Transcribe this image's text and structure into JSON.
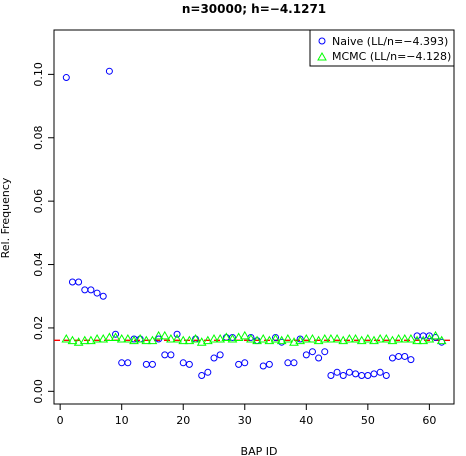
{
  "chart_data": {
    "type": "scatter",
    "title": "n=30000; h=−4.1271",
    "xlabel": "BAP ID",
    "ylabel": "Rel. Frequency",
    "xlim": [
      -1,
      64
    ],
    "ylim": [
      -0.004,
      0.114
    ],
    "x_ticks": [
      0,
      10,
      20,
      30,
      40,
      50,
      60
    ],
    "y_ticks": [
      0.0,
      0.02,
      0.04,
      0.06,
      0.08,
      0.1
    ],
    "y_tick_labels": [
      "0.00",
      "0.02",
      "0.04",
      "0.06",
      "0.08",
      "0.10"
    ],
    "legend_position": "top-right",
    "reference_line": {
      "y": 0.0161,
      "color": "#ff0000",
      "style": "dashed"
    },
    "x": [
      1,
      2,
      3,
      4,
      5,
      6,
      7,
      8,
      9,
      10,
      11,
      12,
      13,
      14,
      15,
      16,
      17,
      18,
      19,
      20,
      21,
      22,
      23,
      24,
      25,
      26,
      27,
      28,
      29,
      30,
      31,
      32,
      33,
      34,
      35,
      36,
      37,
      38,
      39,
      40,
      41,
      42,
      43,
      44,
      45,
      46,
      47,
      48,
      49,
      50,
      51,
      52,
      53,
      54,
      55,
      56,
      57,
      58,
      59,
      60,
      61,
      62
    ],
    "series": [
      {
        "name": "Naive (LL/n=−4.393)",
        "marker": "circle",
        "color": "#0000ff",
        "values": [
          0.099,
          0.0345,
          0.0345,
          0.032,
          0.032,
          0.031,
          0.03,
          0.101,
          0.018,
          0.009,
          0.009,
          0.0165,
          0.0165,
          0.0085,
          0.0085,
          0.0165,
          0.0115,
          0.0115,
          0.018,
          0.009,
          0.0085,
          0.0165,
          0.005,
          0.006,
          0.0105,
          0.0115,
          0.017,
          0.017,
          0.0085,
          0.009,
          0.017,
          0.016,
          0.008,
          0.0085,
          0.017,
          0.0155,
          0.009,
          0.009,
          0.0165,
          0.0115,
          0.0125,
          0.0105,
          0.0125,
          0.005,
          0.006,
          0.005,
          0.006,
          0.0055,
          0.005,
          0.005,
          0.0055,
          0.006,
          0.005,
          0.0105,
          0.011,
          0.011,
          0.01,
          0.0175,
          0.0175,
          0.0175,
          0.017,
          0.0155
        ]
      },
      {
        "name": "MCMC (LL/n=−4.128)",
        "marker": "triangle",
        "color": "#00ff00",
        "values": [
          0.0165,
          0.016,
          0.0155,
          0.016,
          0.016,
          0.0165,
          0.0165,
          0.017,
          0.017,
          0.0165,
          0.0165,
          0.016,
          0.0165,
          0.016,
          0.016,
          0.0175,
          0.0175,
          0.0165,
          0.0165,
          0.016,
          0.016,
          0.0165,
          0.0155,
          0.016,
          0.0165,
          0.0165,
          0.017,
          0.0165,
          0.017,
          0.0175,
          0.0165,
          0.016,
          0.0165,
          0.016,
          0.0165,
          0.016,
          0.0165,
          0.0155,
          0.016,
          0.0165,
          0.0165,
          0.016,
          0.0165,
          0.0165,
          0.0165,
          0.016,
          0.0165,
          0.0165,
          0.016,
          0.0165,
          0.016,
          0.0165,
          0.0165,
          0.016,
          0.0165,
          0.0165,
          0.0165,
          0.016,
          0.016,
          0.0165,
          0.0175,
          0.016
        ]
      }
    ]
  }
}
